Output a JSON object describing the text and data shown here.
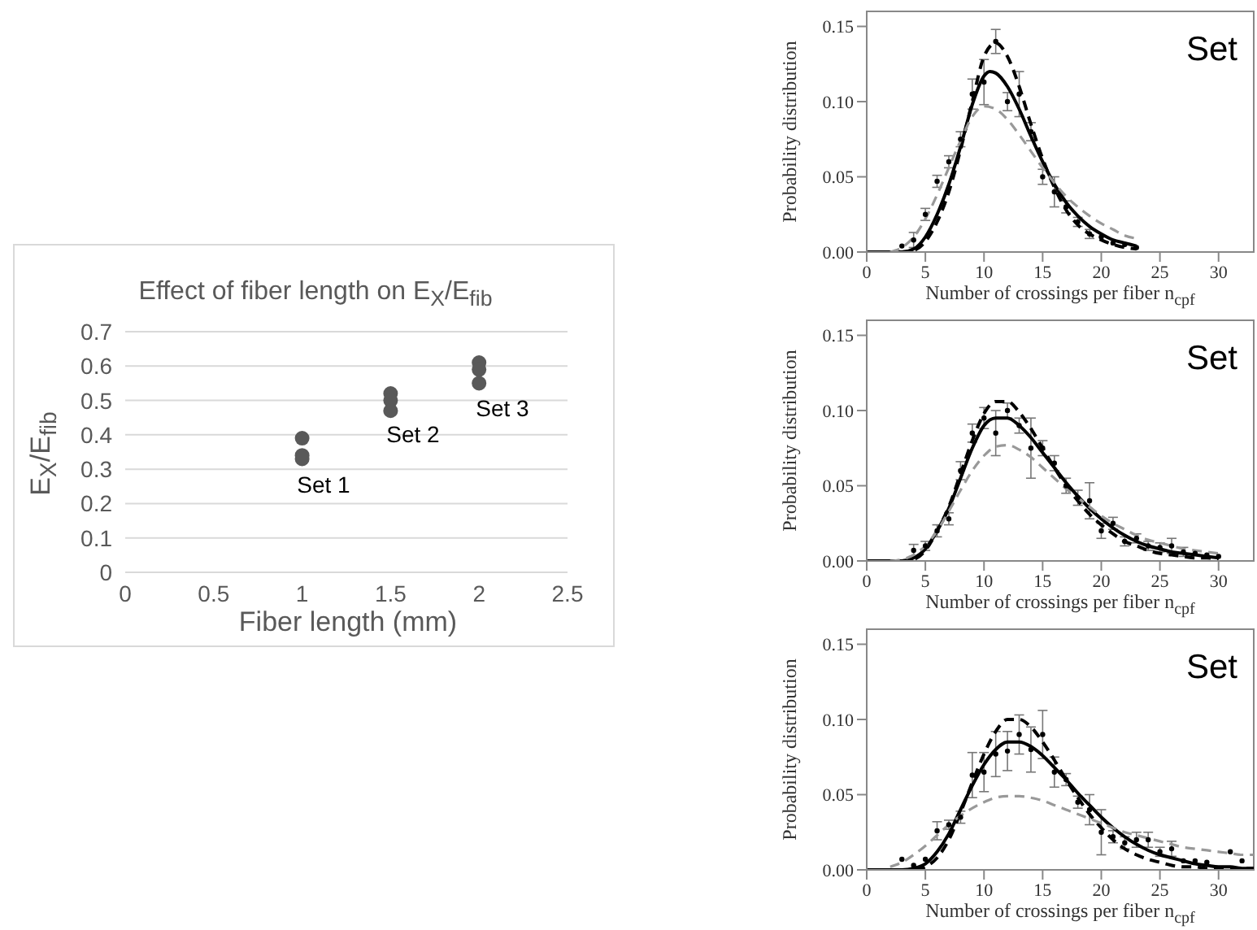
{
  "chart_data": [
    {
      "type": "scatter",
      "title": "Effect of fiber length on E$_{X}$/E$_{fib}$",
      "xlabel": "Fiber length (mm)",
      "ylabel": "E$_{X}$/E$_{fib}$",
      "x": [
        1,
        1,
        1,
        1.5,
        1.5,
        1.5,
        2,
        2,
        2
      ],
      "values": [
        0.39,
        0.34,
        0.33,
        0.52,
        0.5,
        0.47,
        0.61,
        0.59,
        0.55
      ],
      "color": "#595959",
      "marker": "circle",
      "xlim": [
        0,
        2.5
      ],
      "xticks": [
        0,
        0.5,
        1,
        1.5,
        2,
        2.5
      ],
      "ylim": [
        0,
        0.7
      ],
      "yticks": [
        0,
        0.1,
        0.2,
        0.3,
        0.4,
        0.5,
        0.6,
        0.7
      ],
      "grid": "y",
      "annotations": [
        "Set 1",
        "Set 2",
        "Set 3"
      ]
    },
    {
      "type": "line",
      "xlabel": "Number of crossings per fiber n$_{cpf}$",
      "ylabel": "Probability distribution",
      "xlim": [
        0,
        33
      ],
      "xticks": [
        0,
        5,
        10,
        15,
        20,
        25,
        30
      ],
      "ylim": [
        0,
        0.16
      ],
      "yticks": [
        {
          "value": 0,
          "label": "0.00"
        },
        {
          "value": 0.05,
          "label": "0.05"
        },
        {
          "value": 0.1,
          "label": "0.10"
        },
        {
          "value": 0.15,
          "label": "0.15"
        }
      ],
      "annotations": [
        "Set"
      ],
      "series": [
        {
          "color": "#000000",
          "line_style": "solid",
          "marker": "none",
          "x": [
            0,
            3,
            4,
            5,
            6,
            7,
            8,
            9,
            10,
            10.5,
            11,
            12,
            13,
            14,
            15,
            16,
            17,
            18,
            19,
            20,
            21,
            22,
            23
          ],
          "values": [
            0,
            0,
            0.002,
            0.01,
            0.025,
            0.045,
            0.07,
            0.098,
            0.117,
            0.12,
            0.119,
            0.11,
            0.095,
            0.077,
            0.06,
            0.045,
            0.033,
            0.024,
            0.017,
            0.012,
            0.008,
            0.006,
            0.004
          ]
        },
        {
          "color": "#000000",
          "line_style": "dashed",
          "marker": "none",
          "x": [
            0,
            3,
            4,
            5,
            6,
            7,
            8,
            9,
            10,
            11,
            12,
            13,
            14,
            15,
            16,
            17,
            18,
            19,
            20,
            21,
            22,
            23
          ],
          "values": [
            0,
            0,
            0.001,
            0.007,
            0.02,
            0.04,
            0.068,
            0.1,
            0.13,
            0.139,
            0.13,
            0.11,
            0.085,
            0.062,
            0.043,
            0.028,
            0.018,
            0.012,
            0.008,
            0.005,
            0.003,
            0.002
          ]
        },
        {
          "color": "#999999",
          "line_style": "dashed",
          "marker": "none",
          "x": [
            2,
            3,
            4,
            5,
            6,
            7,
            8,
            9,
            10,
            11,
            12,
            13,
            14,
            15,
            16,
            17,
            18,
            19,
            20,
            21,
            22,
            23
          ],
          "values": [
            0,
            0.003,
            0.01,
            0.022,
            0.038,
            0.056,
            0.074,
            0.09,
            0.097,
            0.095,
            0.088,
            0.078,
            0.067,
            0.056,
            0.046,
            0.037,
            0.03,
            0.024,
            0.019,
            0.015,
            0.011,
            0.009
          ]
        },
        {
          "type": "scatter",
          "color": "#000000",
          "marker": "circle",
          "x": [
            3,
            4,
            5,
            6,
            7,
            8,
            9,
            10,
            11,
            12,
            13,
            14,
            15,
            16,
            17,
            18,
            19,
            20,
            21,
            22,
            23
          ],
          "values": [
            0.004,
            0.008,
            0.025,
            0.047,
            0.06,
            0.075,
            0.105,
            0.113,
            0.14,
            0.1,
            0.105,
            0.08,
            0.05,
            0.04,
            0.03,
            0.02,
            0.012,
            0.01,
            0.006,
            0.005,
            0.003
          ],
          "errors": [
            null,
            0.005,
            0.004,
            0.004,
            0.004,
            0.005,
            0.01,
            0.015,
            0.008,
            0.006,
            0.015,
            0.006,
            0.005,
            0.01,
            0.004,
            0.003,
            0.003,
            null,
            null,
            null,
            null
          ]
        }
      ]
    },
    {
      "type": "line",
      "xlabel": "Number of crossings per fiber n$_{cpf}$",
      "ylabel": "Probability distribution",
      "xlim": [
        0,
        33
      ],
      "xticks": [
        0,
        5,
        10,
        15,
        20,
        25,
        30
      ],
      "ylim": [
        0,
        0.16
      ],
      "yticks": [
        {
          "value": 0,
          "label": "0.00"
        },
        {
          "value": 0.05,
          "label": "0.05"
        },
        {
          "value": 0.1,
          "label": "0.10"
        },
        {
          "value": 0.15,
          "label": "0.15"
        }
      ],
      "annotations": [
        "Set"
      ],
      "series": [
        {
          "color": "#000000",
          "line_style": "solid",
          "marker": "none",
          "x": [
            0,
            3,
            4,
            5,
            6,
            7,
            8,
            9,
            10,
            11,
            12,
            13,
            14,
            15,
            16,
            17,
            18,
            19,
            20,
            21,
            22,
            23,
            24,
            25,
            26,
            27,
            28,
            29,
            30
          ],
          "values": [
            0,
            0,
            0.002,
            0.008,
            0.02,
            0.035,
            0.055,
            0.075,
            0.09,
            0.095,
            0.095,
            0.09,
            0.082,
            0.072,
            0.062,
            0.052,
            0.043,
            0.035,
            0.028,
            0.022,
            0.017,
            0.013,
            0.01,
            0.008,
            0.006,
            0.005,
            0.004,
            0.003,
            0.002
          ]
        },
        {
          "color": "#000000",
          "line_style": "dashed",
          "marker": "none",
          "x": [
            0,
            3,
            4,
            5,
            6,
            7,
            8,
            9,
            10,
            11,
            12,
            13,
            14,
            15,
            16,
            17,
            18,
            19,
            20,
            21,
            22,
            23,
            24,
            25,
            26,
            27,
            28,
            29,
            30
          ],
          "values": [
            0,
            0,
            0.001,
            0.007,
            0.02,
            0.036,
            0.058,
            0.08,
            0.098,
            0.106,
            0.106,
            0.099,
            0.088,
            0.075,
            0.062,
            0.05,
            0.04,
            0.031,
            0.024,
            0.018,
            0.013,
            0.01,
            0.007,
            0.005,
            0.004,
            0.003,
            0.002,
            0.002,
            0.001
          ]
        },
        {
          "color": "#999999",
          "line_style": "dashed",
          "marker": "none",
          "x": [
            2,
            3,
            4,
            5,
            6,
            7,
            8,
            9,
            10,
            11,
            12,
            13,
            14,
            15,
            16,
            17,
            18,
            19,
            20,
            21,
            22,
            23,
            24,
            25,
            26,
            27,
            28,
            29,
            30
          ],
          "values": [
            0,
            0.001,
            0.004,
            0.01,
            0.02,
            0.033,
            0.047,
            0.06,
            0.07,
            0.076,
            0.077,
            0.074,
            0.069,
            0.062,
            0.055,
            0.048,
            0.042,
            0.036,
            0.03,
            0.025,
            0.021,
            0.017,
            0.014,
            0.012,
            0.01,
            0.008,
            0.007,
            0.006,
            0.005
          ]
        },
        {
          "type": "scatter",
          "color": "#000000",
          "marker": "circle",
          "x": [
            4,
            5,
            6,
            7,
            8,
            9,
            10,
            11,
            12,
            13,
            14,
            15,
            16,
            17,
            18,
            19,
            20,
            21,
            22,
            23,
            24,
            25,
            26,
            27,
            28,
            29,
            30
          ],
          "values": [
            0.007,
            0.01,
            0.02,
            0.028,
            0.06,
            0.085,
            0.095,
            0.085,
            0.1,
            0.09,
            0.075,
            0.075,
            0.065,
            0.05,
            0.042,
            0.04,
            0.02,
            0.025,
            0.013,
            0.015,
            0.01,
            0.009,
            0.01,
            0.006,
            0.005,
            0.004,
            0.003
          ],
          "errors": [
            0.004,
            0.003,
            0.004,
            0.004,
            0.006,
            0.006,
            0.007,
            0.015,
            0.005,
            0.005,
            0.02,
            0.005,
            0.005,
            0.005,
            0.005,
            0.012,
            0.005,
            0.004,
            0.003,
            0.003,
            0.003,
            0.003,
            0.005,
            0.003,
            null,
            null,
            null
          ]
        }
      ]
    },
    {
      "type": "line",
      "xlabel": "Number of crossings per fiber n$_{cpf}$",
      "ylabel": "Probability distribution",
      "xlim": [
        0,
        33
      ],
      "xticks": [
        0,
        5,
        10,
        15,
        20,
        25,
        30
      ],
      "ylim": [
        0,
        0.16
      ],
      "yticks": [
        {
          "value": 0,
          "label": "0.00"
        },
        {
          "value": 0.05,
          "label": "0.05"
        },
        {
          "value": 0.1,
          "label": "0.10"
        },
        {
          "value": 0.15,
          "label": "0.15"
        }
      ],
      "annotations": [
        "Set"
      ],
      "series": [
        {
          "color": "#000000",
          "line_style": "solid",
          "marker": "none",
          "x": [
            0,
            3,
            4,
            5,
            6,
            7,
            8,
            9,
            10,
            11,
            12,
            13,
            14,
            15,
            16,
            17,
            18,
            19,
            20,
            21,
            22,
            23,
            24,
            25,
            26,
            27,
            28,
            29,
            30,
            31,
            32,
            33
          ],
          "values": [
            0,
            0,
            0.001,
            0.004,
            0.012,
            0.024,
            0.04,
            0.056,
            0.07,
            0.08,
            0.085,
            0.085,
            0.082,
            0.076,
            0.068,
            0.06,
            0.051,
            0.043,
            0.035,
            0.028,
            0.022,
            0.017,
            0.013,
            0.01,
            0.008,
            0.006,
            0.004,
            0.003,
            0.002,
            0.002,
            0.001,
            0.001
          ]
        },
        {
          "color": "#000000",
          "line_style": "dashed",
          "marker": "none",
          "x": [
            0,
            4,
            5,
            6,
            7,
            8,
            9,
            10,
            11,
            12,
            13,
            14,
            15,
            16,
            17,
            18,
            19,
            20,
            21,
            22,
            23,
            24,
            25,
            26,
            27,
            28,
            29,
            30,
            31,
            32,
            33
          ],
          "values": [
            0,
            0,
            0.002,
            0.008,
            0.02,
            0.038,
            0.058,
            0.077,
            0.092,
            0.1,
            0.1,
            0.095,
            0.085,
            0.073,
            0.06,
            0.048,
            0.037,
            0.028,
            0.02,
            0.014,
            0.01,
            0.007,
            0.005,
            0.003,
            0.002,
            0.002,
            0.001,
            0.001,
            0.001,
            0.001,
            0.001
          ]
        },
        {
          "color": "#999999",
          "line_style": "dashed",
          "marker": "none",
          "x": [
            2,
            3,
            4,
            5,
            6,
            7,
            8,
            9,
            10,
            11,
            12,
            13,
            14,
            15,
            16,
            17,
            18,
            19,
            20,
            21,
            22,
            23,
            24,
            25,
            26,
            27,
            28,
            29,
            30,
            31,
            32,
            33
          ],
          "values": [
            0.002,
            0.005,
            0.01,
            0.016,
            0.023,
            0.03,
            0.036,
            0.041,
            0.045,
            0.048,
            0.049,
            0.049,
            0.048,
            0.046,
            0.043,
            0.04,
            0.037,
            0.034,
            0.031,
            0.028,
            0.025,
            0.023,
            0.021,
            0.019,
            0.017,
            0.015,
            0.014,
            0.013,
            0.012,
            0.011,
            0.01,
            0.01
          ]
        },
        {
          "type": "scatter",
          "color": "#000000",
          "marker": "circle",
          "x": [
            3,
            4,
            5,
            6,
            7,
            8,
            9,
            10,
            11,
            12,
            13,
            14,
            15,
            16,
            17,
            18,
            19,
            20,
            21,
            22,
            23,
            24,
            25,
            26,
            27,
            28,
            29,
            31,
            32
          ],
          "values": [
            0.007,
            0.003,
            0.007,
            0.026,
            0.03,
            0.035,
            0.063,
            0.065,
            0.077,
            0.079,
            0.09,
            0.08,
            0.09,
            0.065,
            0.06,
            0.045,
            0.04,
            0.025,
            0.022,
            0.018,
            0.02,
            0.02,
            0.012,
            0.014,
            0.006,
            0.006,
            0.005,
            0.012,
            0.006
          ],
          "errors": [
            null,
            null,
            null,
            0.006,
            0.003,
            0.004,
            0.015,
            0.013,
            0.015,
            0.013,
            0.013,
            0.015,
            0.016,
            0.01,
            0.004,
            0.004,
            0.01,
            0.015,
            0.004,
            0.004,
            0.005,
            0.005,
            0.003,
            0.005,
            null,
            null,
            null,
            null,
            null
          ]
        }
      ]
    }
  ]
}
